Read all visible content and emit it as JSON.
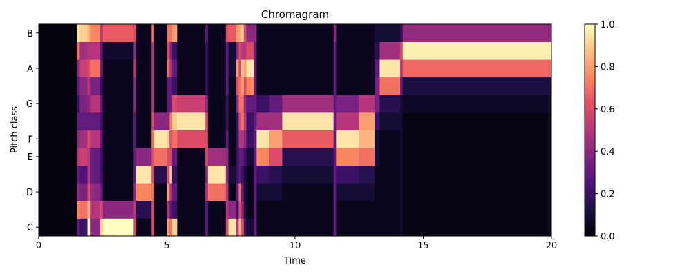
{
  "chart_data": {
    "type": "heatmap",
    "title": "Chromagram",
    "xlabel": "Time",
    "ylabel": "Pitch class",
    "xlim": [
      0,
      20
    ],
    "x_ticks": [
      0,
      5,
      10,
      15,
      20
    ],
    "x_tick_labels": [
      "0",
      "5",
      "10",
      "15",
      "20"
    ],
    "pitch_classes": [
      "C",
      "C#",
      "D",
      "D#",
      "E",
      "F",
      "F#",
      "G",
      "G#",
      "A",
      "A#",
      "B"
    ],
    "y_tick_labels": [
      "C",
      "D",
      "E",
      "F",
      "G",
      "A",
      "B"
    ],
    "y_tick_rows": [
      0,
      2,
      4,
      5,
      7,
      9,
      11
    ],
    "colorbar": {
      "colormap": "magma",
      "vlim": [
        0,
        1
      ],
      "ticks": [
        0.0,
        0.2,
        0.4,
        0.6,
        0.8,
        1.0
      ],
      "tick_labels": [
        "0.0",
        "0.2",
        "0.4",
        "0.6",
        "0.8",
        "1.0"
      ],
      "stops": [
        "#000004",
        "#1c1044",
        "#4f127b",
        "#812581",
        "#b5367a",
        "#e55064",
        "#fb8761",
        "#fec287",
        "#fcfdbf"
      ]
    },
    "segments": [
      {
        "t0": 0.0,
        "t1": 1.5,
        "values": [
          0.02,
          0.02,
          0.02,
          0.02,
          0.02,
          0.02,
          0.02,
          0.02,
          0.02,
          0.02,
          0.02,
          0.02
        ]
      },
      {
        "t0": 1.5,
        "t1": 1.6,
        "values": [
          0.3,
          0.75,
          0.4,
          0.3,
          0.5,
          0.4,
          0.3,
          0.2,
          0.3,
          0.4,
          0.7,
          0.95
        ]
      },
      {
        "t0": 1.6,
        "t1": 1.9,
        "values": [
          0.2,
          0.7,
          0.35,
          0.25,
          0.55,
          0.45,
          0.3,
          0.35,
          0.4,
          0.55,
          0.45,
          0.9
        ]
      },
      {
        "t0": 1.9,
        "t1": 2.0,
        "values": [
          1.0,
          0.85,
          0.6,
          0.5,
          0.5,
          0.6,
          0.3,
          0.4,
          0.5,
          0.6,
          0.5,
          0.85
        ]
      },
      {
        "t0": 2.0,
        "t1": 2.4,
        "values": [
          0.4,
          0.5,
          0.4,
          0.3,
          0.3,
          0.5,
          0.3,
          0.5,
          0.35,
          0.7,
          0.5,
          0.75
        ]
      },
      {
        "t0": 2.4,
        "t1": 2.5,
        "values": [
          0.9,
          0.6,
          0.3,
          0.2,
          0.2,
          0.3,
          0.2,
          0.3,
          0.2,
          0.3,
          0.3,
          0.5
        ]
      },
      {
        "t0": 2.5,
        "t1": 3.7,
        "values": [
          1.0,
          0.4,
          0.05,
          0.05,
          0.05,
          0.05,
          0.05,
          0.05,
          0.05,
          0.05,
          0.08,
          0.65
        ]
      },
      {
        "t0": 3.7,
        "t1": 3.8,
        "values": [
          0.6,
          0.5,
          0.4,
          0.3,
          0.3,
          0.3,
          0.3,
          0.4,
          0.4,
          0.5,
          0.4,
          0.6
        ]
      },
      {
        "t0": 3.8,
        "t1": 4.4,
        "values": [
          0.05,
          0.15,
          0.75,
          0.95,
          0.4,
          0.05,
          0.05,
          0.05,
          0.05,
          0.05,
          0.05,
          0.05
        ]
      },
      {
        "t0": 4.4,
        "t1": 4.5,
        "values": [
          0.6,
          0.6,
          0.7,
          0.6,
          0.6,
          0.7,
          0.6,
          0.5,
          0.5,
          0.5,
          0.5,
          0.7
        ]
      },
      {
        "t0": 4.5,
        "t1": 5.0,
        "values": [
          0.05,
          0.05,
          0.05,
          0.15,
          0.7,
          0.95,
          0.4,
          0.05,
          0.05,
          0.05,
          0.05,
          0.05
        ]
      },
      {
        "t0": 5.0,
        "t1": 5.1,
        "values": [
          0.8,
          0.5,
          0.8,
          0.6,
          0.6,
          0.9,
          0.4,
          0.3,
          0.3,
          0.7,
          0.6,
          0.7
        ]
      },
      {
        "t0": 5.1,
        "t1": 5.2,
        "values": [
          0.7,
          0.3,
          0.5,
          0.9,
          0.6,
          0.6,
          0.7,
          0.3,
          0.3,
          0.5,
          0.4,
          0.7
        ]
      },
      {
        "t0": 5.2,
        "t1": 5.4,
        "values": [
          0.9,
          0.2,
          0.3,
          0.2,
          0.3,
          0.7,
          0.9,
          0.6,
          0.2,
          0.3,
          0.2,
          0.8
        ]
      },
      {
        "t0": 5.4,
        "t1": 6.5,
        "values": [
          0.05,
          0.05,
          0.05,
          0.05,
          0.05,
          0.6,
          0.95,
          0.55,
          0.05,
          0.05,
          0.05,
          0.05
        ]
      },
      {
        "t0": 6.5,
        "t1": 6.6,
        "values": [
          0.3,
          0.3,
          0.5,
          0.4,
          0.6,
          0.6,
          0.6,
          0.4,
          0.2,
          0.2,
          0.2,
          0.3
        ]
      },
      {
        "t0": 6.6,
        "t1": 7.3,
        "values": [
          0.05,
          0.05,
          0.7,
          0.95,
          0.45,
          0.05,
          0.05,
          0.05,
          0.05,
          0.05,
          0.05,
          0.05
        ]
      },
      {
        "t0": 7.3,
        "t1": 7.4,
        "values": [
          0.6,
          0.5,
          0.5,
          0.4,
          0.4,
          0.3,
          0.2,
          0.2,
          0.3,
          0.3,
          0.3,
          0.6
        ]
      },
      {
        "t0": 7.4,
        "t1": 7.7,
        "values": [
          0.95,
          0.4,
          0.05,
          0.1,
          0.05,
          0.05,
          0.05,
          0.05,
          0.05,
          0.1,
          0.1,
          0.65
        ]
      },
      {
        "t0": 7.7,
        "t1": 7.8,
        "values": [
          0.5,
          0.2,
          0.3,
          0.2,
          0.2,
          0.2,
          0.2,
          0.4,
          0.6,
          0.8,
          0.4,
          0.8
        ]
      },
      {
        "t0": 7.8,
        "t1": 7.9,
        "values": [
          0.85,
          0.6,
          0.7,
          0.3,
          0.3,
          0.5,
          0.6,
          0.7,
          0.7,
          0.6,
          0.6,
          0.8
        ]
      },
      {
        "t0": 7.9,
        "t1": 8.0,
        "values": [
          0.6,
          0.4,
          0.3,
          0.2,
          0.3,
          0.5,
          0.7,
          0.7,
          0.8,
          0.9,
          0.5,
          0.9
        ]
      },
      {
        "t0": 8.0,
        "t1": 8.1,
        "values": [
          0.2,
          0.1,
          0.1,
          0.1,
          0.2,
          0.4,
          0.5,
          0.4,
          0.6,
          0.8,
          0.5,
          0.6
        ]
      },
      {
        "t0": 8.1,
        "t1": 8.4,
        "values": [
          0.1,
          0.05,
          0.05,
          0.05,
          0.1,
          0.2,
          0.2,
          0.3,
          0.75,
          0.95,
          0.6,
          0.4
        ]
      },
      {
        "t0": 8.4,
        "t1": 8.5,
        "values": [
          0.3,
          0.3,
          0.3,
          0.3,
          0.3,
          0.3,
          0.3,
          0.3,
          0.3,
          0.3,
          0.3,
          0.4
        ]
      },
      {
        "t0": 8.5,
        "t1": 9.0,
        "values": [
          0.05,
          0.05,
          0.1,
          0.2,
          0.75,
          0.95,
          0.45,
          0.2,
          0.05,
          0.05,
          0.05,
          0.05
        ]
      },
      {
        "t0": 9.0,
        "t1": 9.5,
        "values": [
          0.05,
          0.05,
          0.1,
          0.15,
          0.6,
          0.8,
          0.45,
          0.3,
          0.05,
          0.05,
          0.05,
          0.05
        ]
      },
      {
        "t0": 9.5,
        "t1": 11.5,
        "values": [
          0.05,
          0.05,
          0.05,
          0.1,
          0.15,
          0.65,
          0.95,
          0.45,
          0.05,
          0.05,
          0.05,
          0.05
        ]
      },
      {
        "t0": 11.5,
        "t1": 11.6,
        "values": [
          0.3,
          0.3,
          0.3,
          0.3,
          0.3,
          0.3,
          0.3,
          0.3,
          0.3,
          0.3,
          0.3,
          0.4
        ]
      },
      {
        "t0": 11.6,
        "t1": 12.5,
        "values": [
          0.05,
          0.05,
          0.1,
          0.2,
          0.75,
          0.95,
          0.5,
          0.35,
          0.05,
          0.05,
          0.05,
          0.05
        ]
      },
      {
        "t0": 12.5,
        "t1": 13.1,
        "values": [
          0.05,
          0.05,
          0.1,
          0.15,
          0.7,
          0.85,
          0.8,
          0.5,
          0.05,
          0.05,
          0.05,
          0.05
        ]
      },
      {
        "t0": 13.1,
        "t1": 13.3,
        "values": [
          0.05,
          0.05,
          0.05,
          0.05,
          0.1,
          0.1,
          0.2,
          0.35,
          0.35,
          0.3,
          0.15,
          0.1
        ]
      },
      {
        "t0": 13.3,
        "t1": 14.1,
        "values": [
          0.05,
          0.05,
          0.05,
          0.05,
          0.05,
          0.05,
          0.1,
          0.15,
          0.7,
          0.95,
          0.45,
          0.1
        ]
      },
      {
        "t0": 14.1,
        "t1": 14.2,
        "values": [
          0.1,
          0.1,
          0.1,
          0.1,
          0.1,
          0.1,
          0.1,
          0.1,
          0.3,
          0.5,
          0.6,
          0.2
        ]
      },
      {
        "t0": 14.2,
        "t1": 20.0,
        "values": [
          0.03,
          0.03,
          0.03,
          0.03,
          0.03,
          0.03,
          0.03,
          0.06,
          0.12,
          0.68,
          0.97,
          0.42
        ]
      }
    ]
  }
}
